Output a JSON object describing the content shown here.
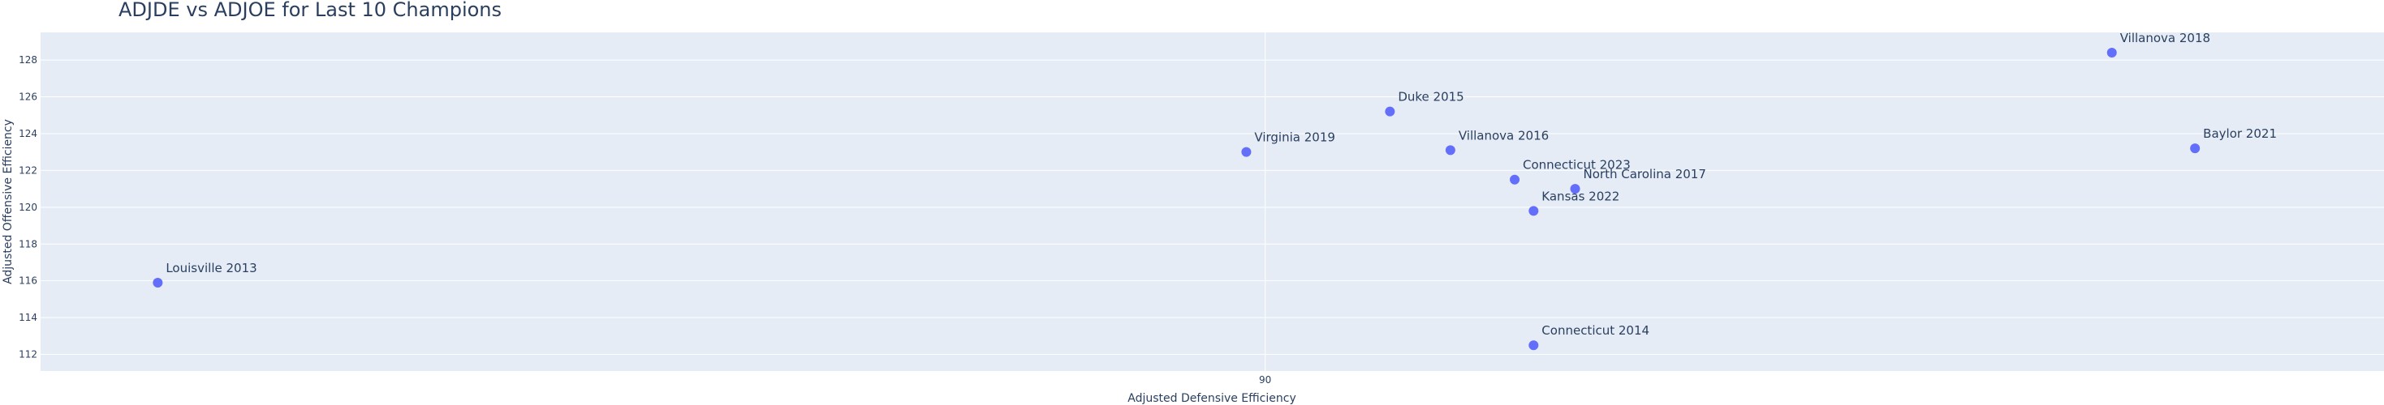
{
  "chart_data": {
    "type": "scatter",
    "title": "ADJDE vs ADJOE for Last 10 Champions",
    "xlabel": "Adjusted Defensive Efficiency",
    "ylabel": "Adjusted Offensive Efficiency",
    "xlim": [
      57.6,
      119.6
    ],
    "ylim": [
      111.1,
      129.5
    ],
    "xticks": [
      90
    ],
    "yticks": [
      112,
      114,
      116,
      118,
      120,
      122,
      124,
      126,
      128
    ],
    "grid": true,
    "colors": {
      "plot_bg": "#e5ecf6",
      "marker": "#636efa",
      "text": "#2a3f5f",
      "grid": "#ffffff"
    },
    "points": [
      {
        "label": "Louisville 2013",
        "x": 60.7,
        "y": 115.9
      },
      {
        "label": "Connecticut 2014",
        "x": 97.1,
        "y": 112.5
      },
      {
        "label": "Duke 2015",
        "x": 93.3,
        "y": 125.2
      },
      {
        "label": "Villanova 2016",
        "x": 94.9,
        "y": 123.1
      },
      {
        "label": "North Carolina 2017",
        "x": 98.2,
        "y": 121.0
      },
      {
        "label": "Villanova 2018",
        "x": 112.4,
        "y": 128.4
      },
      {
        "label": "Virginia 2019",
        "x": 89.5,
        "y": 123.0
      },
      {
        "label": "Baylor 2021",
        "x": 114.6,
        "y": 123.2
      },
      {
        "label": "Kansas 2022",
        "x": 97.1,
        "y": 119.8
      },
      {
        "label": "Connecticut 2023",
        "x": 96.6,
        "y": 121.5
      }
    ]
  }
}
